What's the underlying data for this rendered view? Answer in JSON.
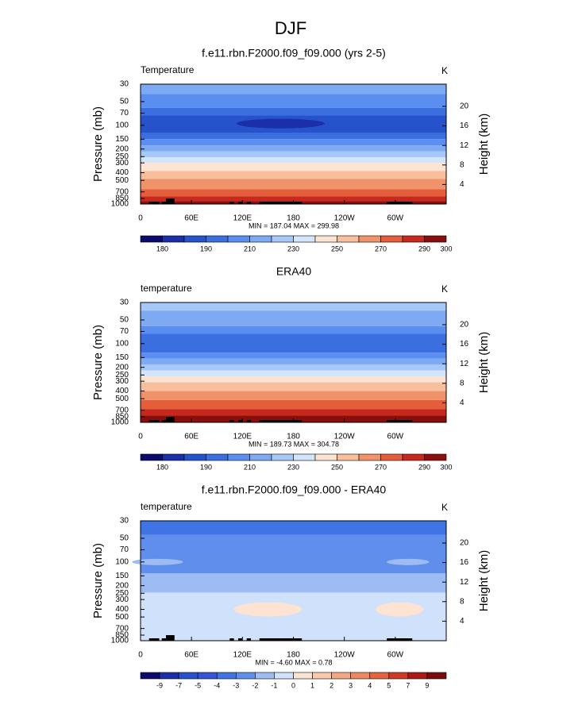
{
  "title": "DJF",
  "chart_data": [
    {
      "type": "contour",
      "title": "f.e11.rbn.F2000.f09_f09.000 (yrs 2-5)",
      "left_label": "Temperature",
      "right_label": "K",
      "ylabel": "Pressure (mb)",
      "y2label": "Height (km)",
      "stats": "MIN = 187.04  MAX = 299.98",
      "xlim": [
        0,
        360
      ],
      "xticks": [
        0,
        {
          "value": 60,
          "label": "60E"
        },
        {
          "value": 120,
          "label": "120E"
        },
        180,
        {
          "value": 240,
          "label": "120W"
        },
        {
          "value": 300,
          "label": "60W"
        }
      ],
      "ylim": [
        1000,
        30
      ],
      "ylog": true,
      "yticks": [
        30,
        50,
        70,
        100,
        150,
        200,
        250,
        300,
        400,
        500,
        700,
        850,
        1000
      ],
      "y2ticks": [
        4,
        8,
        12,
        16,
        20
      ],
      "colorbar": {
        "colors": [
          "#0b0b6e",
          "#1a2fa8",
          "#2653cc",
          "#3b6fe0",
          "#5a8ef0",
          "#7eaaf4",
          "#a6c8f8",
          "#d3e5fb",
          "#fce3d2",
          "#f8bf9c",
          "#f0936b",
          "#e55e3b",
          "#c7291e",
          "#8b0e0e"
        ],
        "ticks": [
          180,
          190,
          210,
          230,
          250,
          270,
          290,
          300
        ]
      }
    },
    {
      "type": "contour",
      "title": "ERA40",
      "left_label": "temperature",
      "right_label": "K",
      "ylabel": "Pressure (mb)",
      "y2label": "Height (km)",
      "stats": "MIN = 189.73  MAX = 304.78",
      "xlim": [
        0,
        360
      ],
      "xticks": [
        0,
        {
          "value": 60,
          "label": "60E"
        },
        {
          "value": 120,
          "label": "120E"
        },
        180,
        {
          "value": 240,
          "label": "120W"
        },
        {
          "value": 300,
          "label": "60W"
        }
      ],
      "ylim": [
        1000,
        30
      ],
      "ylog": true,
      "yticks": [
        30,
        50,
        70,
        100,
        150,
        200,
        250,
        300,
        400,
        500,
        700,
        850,
        1000
      ],
      "y2ticks": [
        4,
        8,
        12,
        16,
        20
      ],
      "colorbar": {
        "colors": [
          "#0b0b6e",
          "#1a2fa8",
          "#2653cc",
          "#3b6fe0",
          "#5a8ef0",
          "#7eaaf4",
          "#a6c8f8",
          "#d3e5fb",
          "#fce3d2",
          "#f8bf9c",
          "#f0936b",
          "#e55e3b",
          "#c7291e",
          "#8b0e0e"
        ],
        "ticks": [
          180,
          190,
          210,
          230,
          250,
          270,
          290,
          300
        ]
      }
    },
    {
      "type": "contour",
      "title": "f.e11.rbn.F2000.f09_f09.000 - ERA40",
      "left_label": "temperature",
      "right_label": "K",
      "ylabel": "Pressure (mb)",
      "y2label": "Height (km)",
      "stats": "MIN = -4.60  MAX =  0.78",
      "xlim": [
        0,
        360
      ],
      "xticks": [
        0,
        {
          "value": 60,
          "label": "60E"
        },
        {
          "value": 120,
          "label": "120E"
        },
        180,
        {
          "value": 240,
          "label": "120W"
        },
        {
          "value": 300,
          "label": "60W"
        }
      ],
      "ylim": [
        1000,
        30
      ],
      "ylog": true,
      "yticks": [
        30,
        50,
        70,
        100,
        150,
        200,
        250,
        300,
        400,
        500,
        700,
        850,
        1000
      ],
      "y2ticks": [
        4,
        8,
        12,
        16,
        20
      ],
      "colorbar": {
        "colors": [
          "#0b0b6e",
          "#1a2fa8",
          "#2653cc",
          "#3456d6",
          "#3f74e4",
          "#5f8eec",
          "#9dbcf4",
          "#cfe1fb",
          "#fce3d2",
          "#f9c9a9",
          "#f4a882",
          "#ee8860",
          "#e4623e",
          "#cf3a22",
          "#ad1a14",
          "#7d0b0b"
        ],
        "ticks": [
          -9,
          -7,
          -5,
          -4,
          -3,
          -2,
          -1,
          0,
          1,
          2,
          3,
          4,
          5,
          7,
          9
        ]
      }
    }
  ]
}
